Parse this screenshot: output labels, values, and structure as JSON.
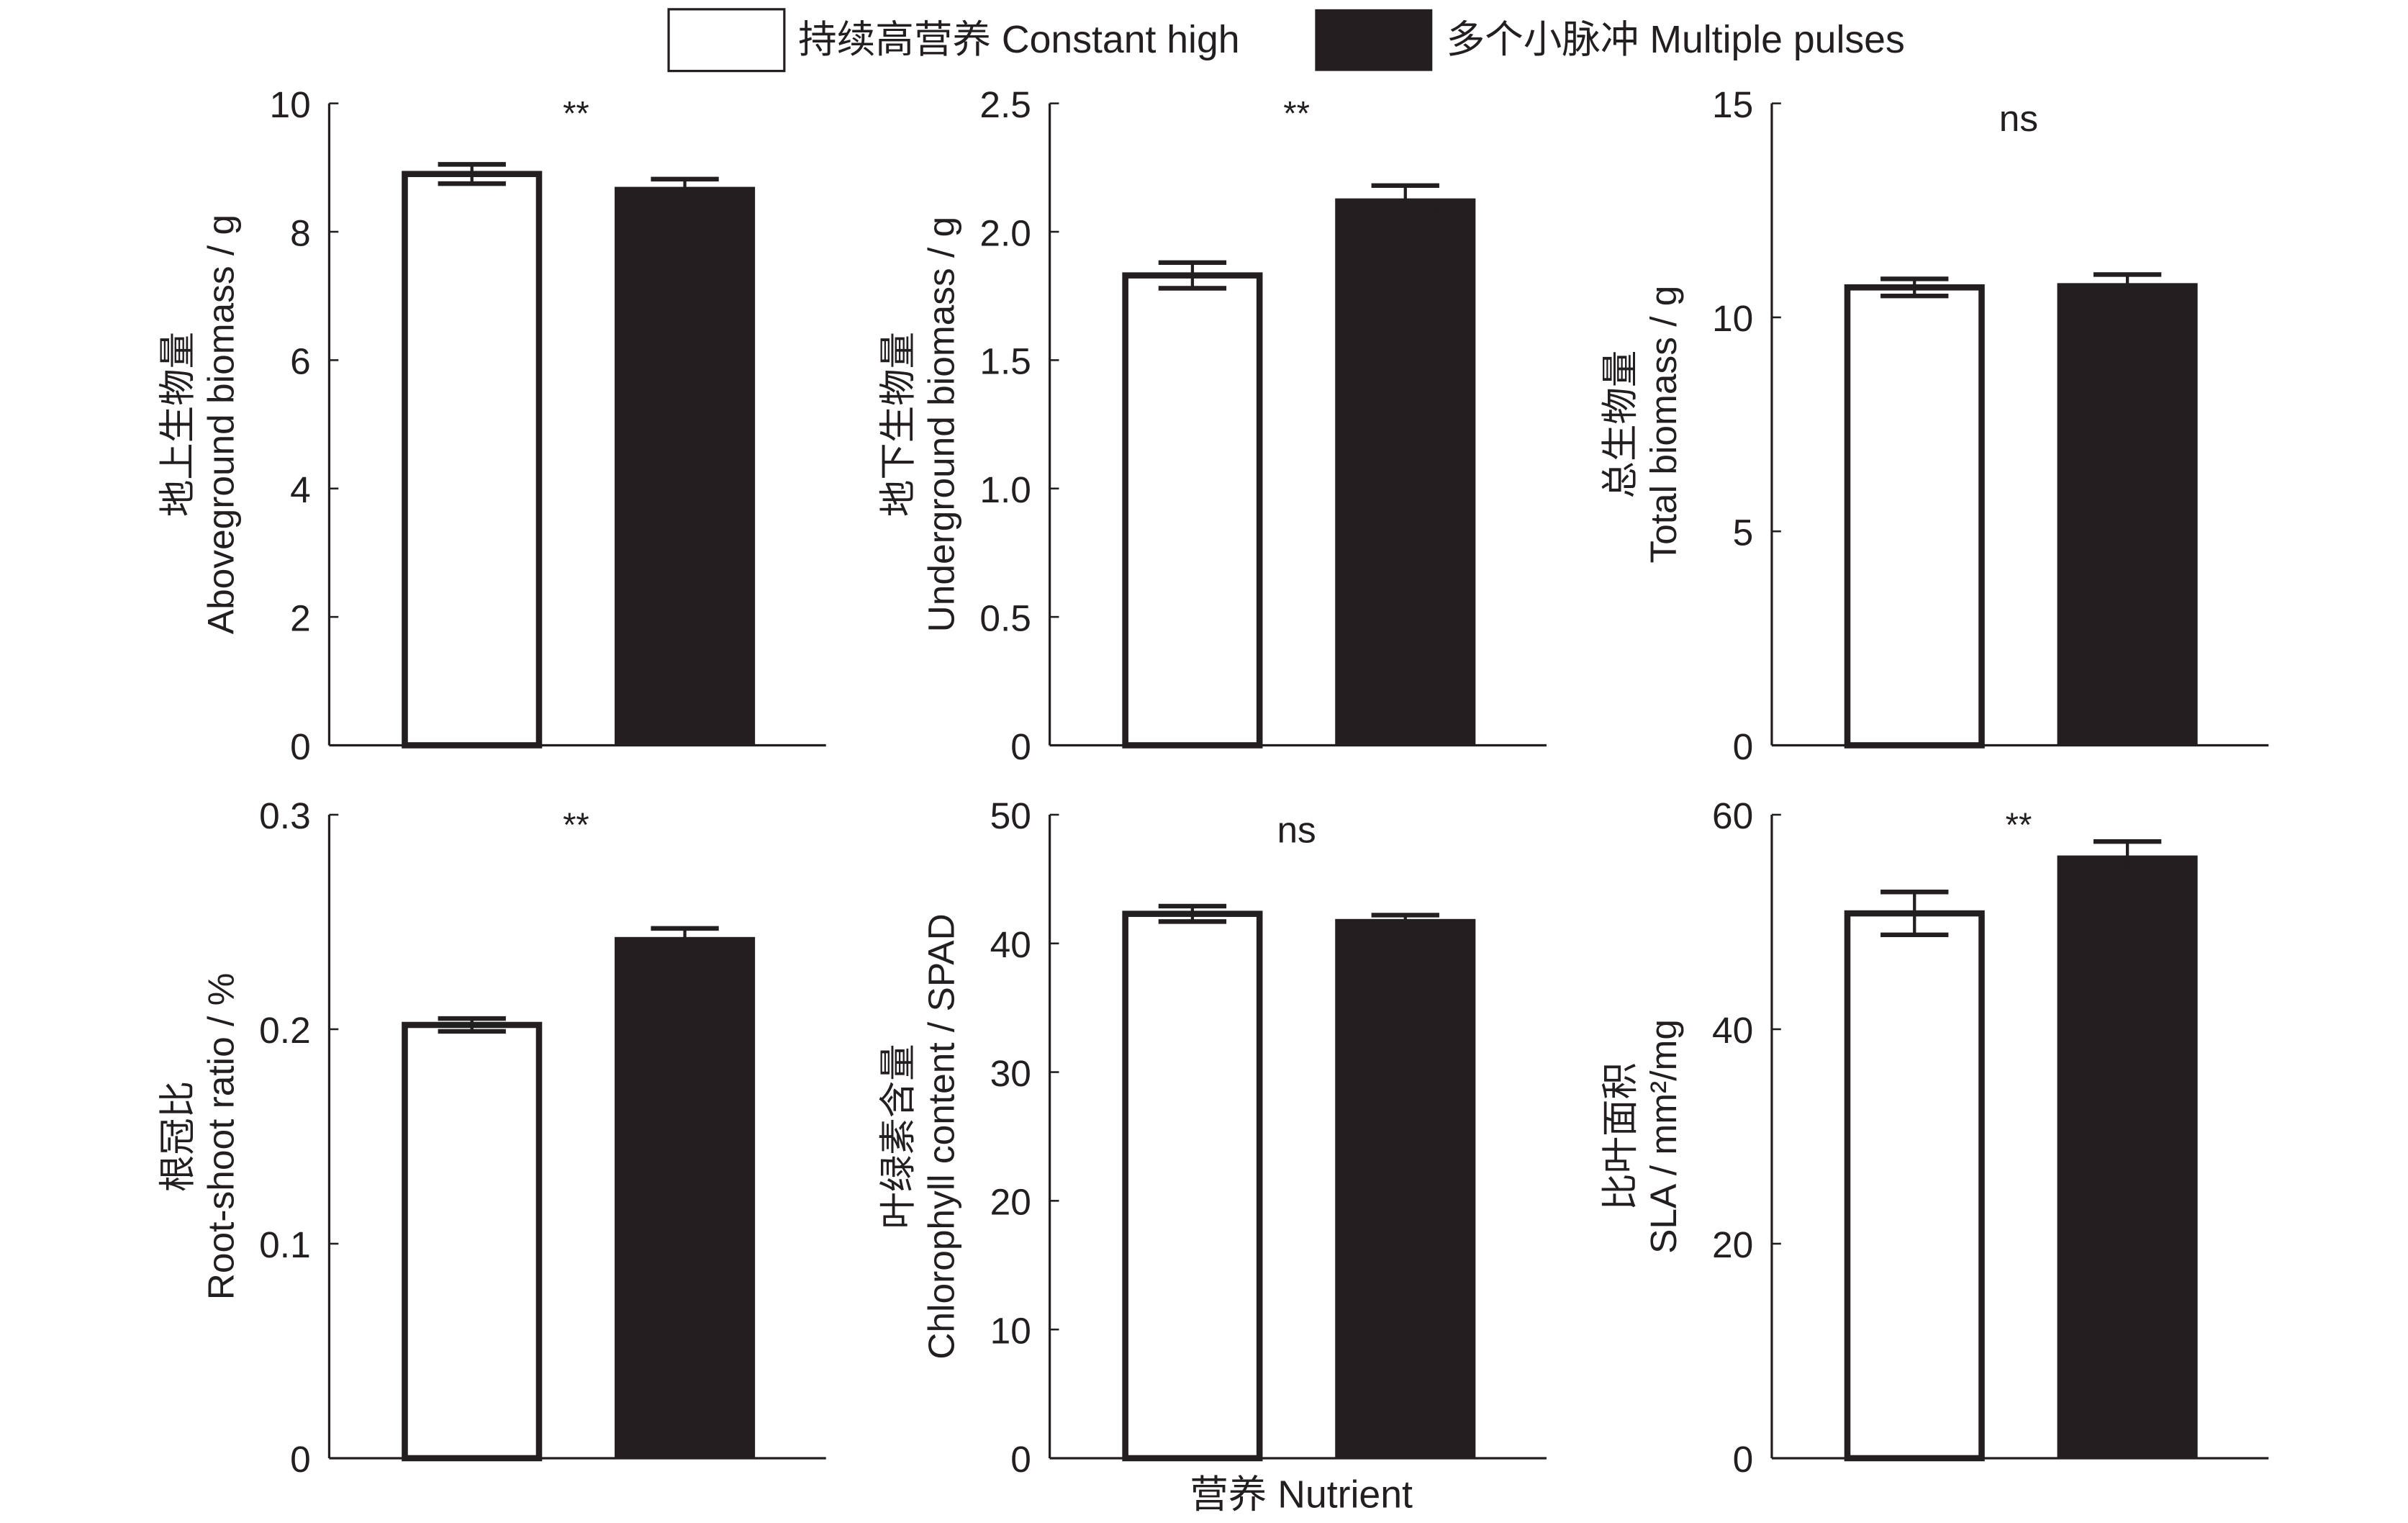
{
  "legend": [
    {
      "label": "持续高营养 Constant high",
      "color": "#ffffff"
    },
    {
      "label": "多个小脉冲 Multiple pulses",
      "color": "#231f20"
    }
  ],
  "xlabel": "营养 Nutrient",
  "chart_data": [
    {
      "type": "bar",
      "ylabel_cn": "地上生物量",
      "ylabel_en": "Aboveground biomass / g",
      "ylim": [
        0,
        10
      ],
      "ticks": [
        "0",
        "2",
        "4",
        "6",
        "8",
        "10"
      ],
      "tick_values": [
        0,
        2,
        4,
        6,
        8,
        10
      ],
      "significance": "**",
      "series": [
        {
          "name": "Constant high",
          "value": 8.9,
          "error": 0.15
        },
        {
          "name": "Multiple pulses",
          "value": 8.7,
          "error": 0.12
        }
      ]
    },
    {
      "type": "bar",
      "ylabel_cn": "地下生物量",
      "ylabel_en": "Underground biomass / g",
      "ylim": [
        0,
        2.5
      ],
      "ticks": [
        "0",
        "0.5",
        "1.0",
        "1.5",
        "2.0",
        "2.5"
      ],
      "tick_values": [
        0,
        0.5,
        1.0,
        1.5,
        2.0,
        2.5
      ],
      "significance": "**",
      "series": [
        {
          "name": "Constant high",
          "value": 1.83,
          "error": 0.05
        },
        {
          "name": "Multiple pulses",
          "value": 2.13,
          "error": 0.05
        }
      ]
    },
    {
      "type": "bar",
      "ylabel_cn": "总生物量",
      "ylabel_en": "Total biomass / g",
      "ylim": [
        0,
        15
      ],
      "ticks": [
        "0",
        "5",
        "10",
        "15"
      ],
      "tick_values": [
        0,
        5,
        10,
        15
      ],
      "significance": "ns",
      "series": [
        {
          "name": "Constant high",
          "value": 10.7,
          "error": 0.2
        },
        {
          "name": "Multiple pulses",
          "value": 10.8,
          "error": 0.2
        }
      ]
    },
    {
      "type": "bar",
      "ylabel_cn": "根冠比",
      "ylabel_en": "Root-shoot ratio / %",
      "ylim": [
        0,
        0.3
      ],
      "ticks": [
        "0",
        "0.1",
        "0.2",
        "0.3"
      ],
      "tick_values": [
        0,
        0.1,
        0.2,
        0.3
      ],
      "significance": "**",
      "series": [
        {
          "name": "Constant high",
          "value": 0.202,
          "error": 0.003
        },
        {
          "name": "Multiple pulses",
          "value": 0.243,
          "error": 0.004
        }
      ]
    },
    {
      "type": "bar",
      "ylabel_cn": "叶绿素含量",
      "ylabel_en": "Chlorophyll content / SPAD",
      "ylim": [
        0,
        50
      ],
      "ticks": [
        "0",
        "10",
        "20",
        "30",
        "40",
        "50"
      ],
      "tick_values": [
        0,
        10,
        20,
        30,
        40,
        50
      ],
      "significance": "ns",
      "series": [
        {
          "name": "Constant high",
          "value": 42.3,
          "error": 0.6
        },
        {
          "name": "Multiple pulses",
          "value": 41.9,
          "error": 0.3
        }
      ]
    },
    {
      "type": "bar",
      "ylabel_cn": "比叶面积",
      "ylabel_en": "SLA / mm²/mg",
      "ylim": [
        0,
        60
      ],
      "ticks": [
        "0",
        "20",
        "40",
        "60"
      ],
      "tick_values": [
        0,
        20,
        40,
        60
      ],
      "significance": "**",
      "series": [
        {
          "name": "Constant high",
          "value": 50.8,
          "error": 2.0
        },
        {
          "name": "Multiple pulses",
          "value": 56.2,
          "error": 1.3
        }
      ]
    }
  ]
}
